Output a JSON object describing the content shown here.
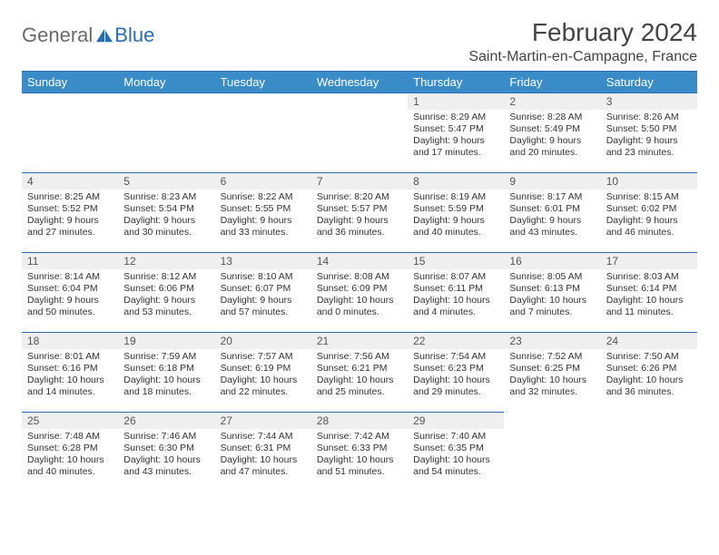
{
  "logo": {
    "general": "General",
    "blue": "Blue"
  },
  "title": "February 2024",
  "location": "Saint-Martin-en-Campagne, France",
  "colors": {
    "header_bg": "#3a8cc9",
    "accent": "#2a6db3",
    "daynum_bg": "#efefef",
    "text": "#333333",
    "logo_gray": "#6b6b6b"
  },
  "dayHeaders": [
    "Sunday",
    "Monday",
    "Tuesday",
    "Wednesday",
    "Thursday",
    "Friday",
    "Saturday"
  ],
  "weeks": [
    [
      null,
      null,
      null,
      null,
      {
        "day": "1",
        "sunrise": "8:29 AM",
        "sunset": "5:47 PM",
        "daylight": "9 hours and 17 minutes."
      },
      {
        "day": "2",
        "sunrise": "8:28 AM",
        "sunset": "5:49 PM",
        "daylight": "9 hours and 20 minutes."
      },
      {
        "day": "3",
        "sunrise": "8:26 AM",
        "sunset": "5:50 PM",
        "daylight": "9 hours and 23 minutes."
      }
    ],
    [
      {
        "day": "4",
        "sunrise": "8:25 AM",
        "sunset": "5:52 PM",
        "daylight": "9 hours and 27 minutes."
      },
      {
        "day": "5",
        "sunrise": "8:23 AM",
        "sunset": "5:54 PM",
        "daylight": "9 hours and 30 minutes."
      },
      {
        "day": "6",
        "sunrise": "8:22 AM",
        "sunset": "5:55 PM",
        "daylight": "9 hours and 33 minutes."
      },
      {
        "day": "7",
        "sunrise": "8:20 AM",
        "sunset": "5:57 PM",
        "daylight": "9 hours and 36 minutes."
      },
      {
        "day": "8",
        "sunrise": "8:19 AM",
        "sunset": "5:59 PM",
        "daylight": "9 hours and 40 minutes."
      },
      {
        "day": "9",
        "sunrise": "8:17 AM",
        "sunset": "6:01 PM",
        "daylight": "9 hours and 43 minutes."
      },
      {
        "day": "10",
        "sunrise": "8:15 AM",
        "sunset": "6:02 PM",
        "daylight": "9 hours and 46 minutes."
      }
    ],
    [
      {
        "day": "11",
        "sunrise": "8:14 AM",
        "sunset": "6:04 PM",
        "daylight": "9 hours and 50 minutes."
      },
      {
        "day": "12",
        "sunrise": "8:12 AM",
        "sunset": "6:06 PM",
        "daylight": "9 hours and 53 minutes."
      },
      {
        "day": "13",
        "sunrise": "8:10 AM",
        "sunset": "6:07 PM",
        "daylight": "9 hours and 57 minutes."
      },
      {
        "day": "14",
        "sunrise": "8:08 AM",
        "sunset": "6:09 PM",
        "daylight": "10 hours and 0 minutes."
      },
      {
        "day": "15",
        "sunrise": "8:07 AM",
        "sunset": "6:11 PM",
        "daylight": "10 hours and 4 minutes."
      },
      {
        "day": "16",
        "sunrise": "8:05 AM",
        "sunset": "6:13 PM",
        "daylight": "10 hours and 7 minutes."
      },
      {
        "day": "17",
        "sunrise": "8:03 AM",
        "sunset": "6:14 PM",
        "daylight": "10 hours and 11 minutes."
      }
    ],
    [
      {
        "day": "18",
        "sunrise": "8:01 AM",
        "sunset": "6:16 PM",
        "daylight": "10 hours and 14 minutes."
      },
      {
        "day": "19",
        "sunrise": "7:59 AM",
        "sunset": "6:18 PM",
        "daylight": "10 hours and 18 minutes."
      },
      {
        "day": "20",
        "sunrise": "7:57 AM",
        "sunset": "6:19 PM",
        "daylight": "10 hours and 22 minutes."
      },
      {
        "day": "21",
        "sunrise": "7:56 AM",
        "sunset": "6:21 PM",
        "daylight": "10 hours and 25 minutes."
      },
      {
        "day": "22",
        "sunrise": "7:54 AM",
        "sunset": "6:23 PM",
        "daylight": "10 hours and 29 minutes."
      },
      {
        "day": "23",
        "sunrise": "7:52 AM",
        "sunset": "6:25 PM",
        "daylight": "10 hours and 32 minutes."
      },
      {
        "day": "24",
        "sunrise": "7:50 AM",
        "sunset": "6:26 PM",
        "daylight": "10 hours and 36 minutes."
      }
    ],
    [
      {
        "day": "25",
        "sunrise": "7:48 AM",
        "sunset": "6:28 PM",
        "daylight": "10 hours and 40 minutes."
      },
      {
        "day": "26",
        "sunrise": "7:46 AM",
        "sunset": "6:30 PM",
        "daylight": "10 hours and 43 minutes."
      },
      {
        "day": "27",
        "sunrise": "7:44 AM",
        "sunset": "6:31 PM",
        "daylight": "10 hours and 47 minutes."
      },
      {
        "day": "28",
        "sunrise": "7:42 AM",
        "sunset": "6:33 PM",
        "daylight": "10 hours and 51 minutes."
      },
      {
        "day": "29",
        "sunrise": "7:40 AM",
        "sunset": "6:35 PM",
        "daylight": "10 hours and 54 minutes."
      },
      null,
      null
    ]
  ],
  "labels": {
    "sunrise": "Sunrise:",
    "sunset": "Sunset:",
    "daylight": "Daylight:"
  }
}
